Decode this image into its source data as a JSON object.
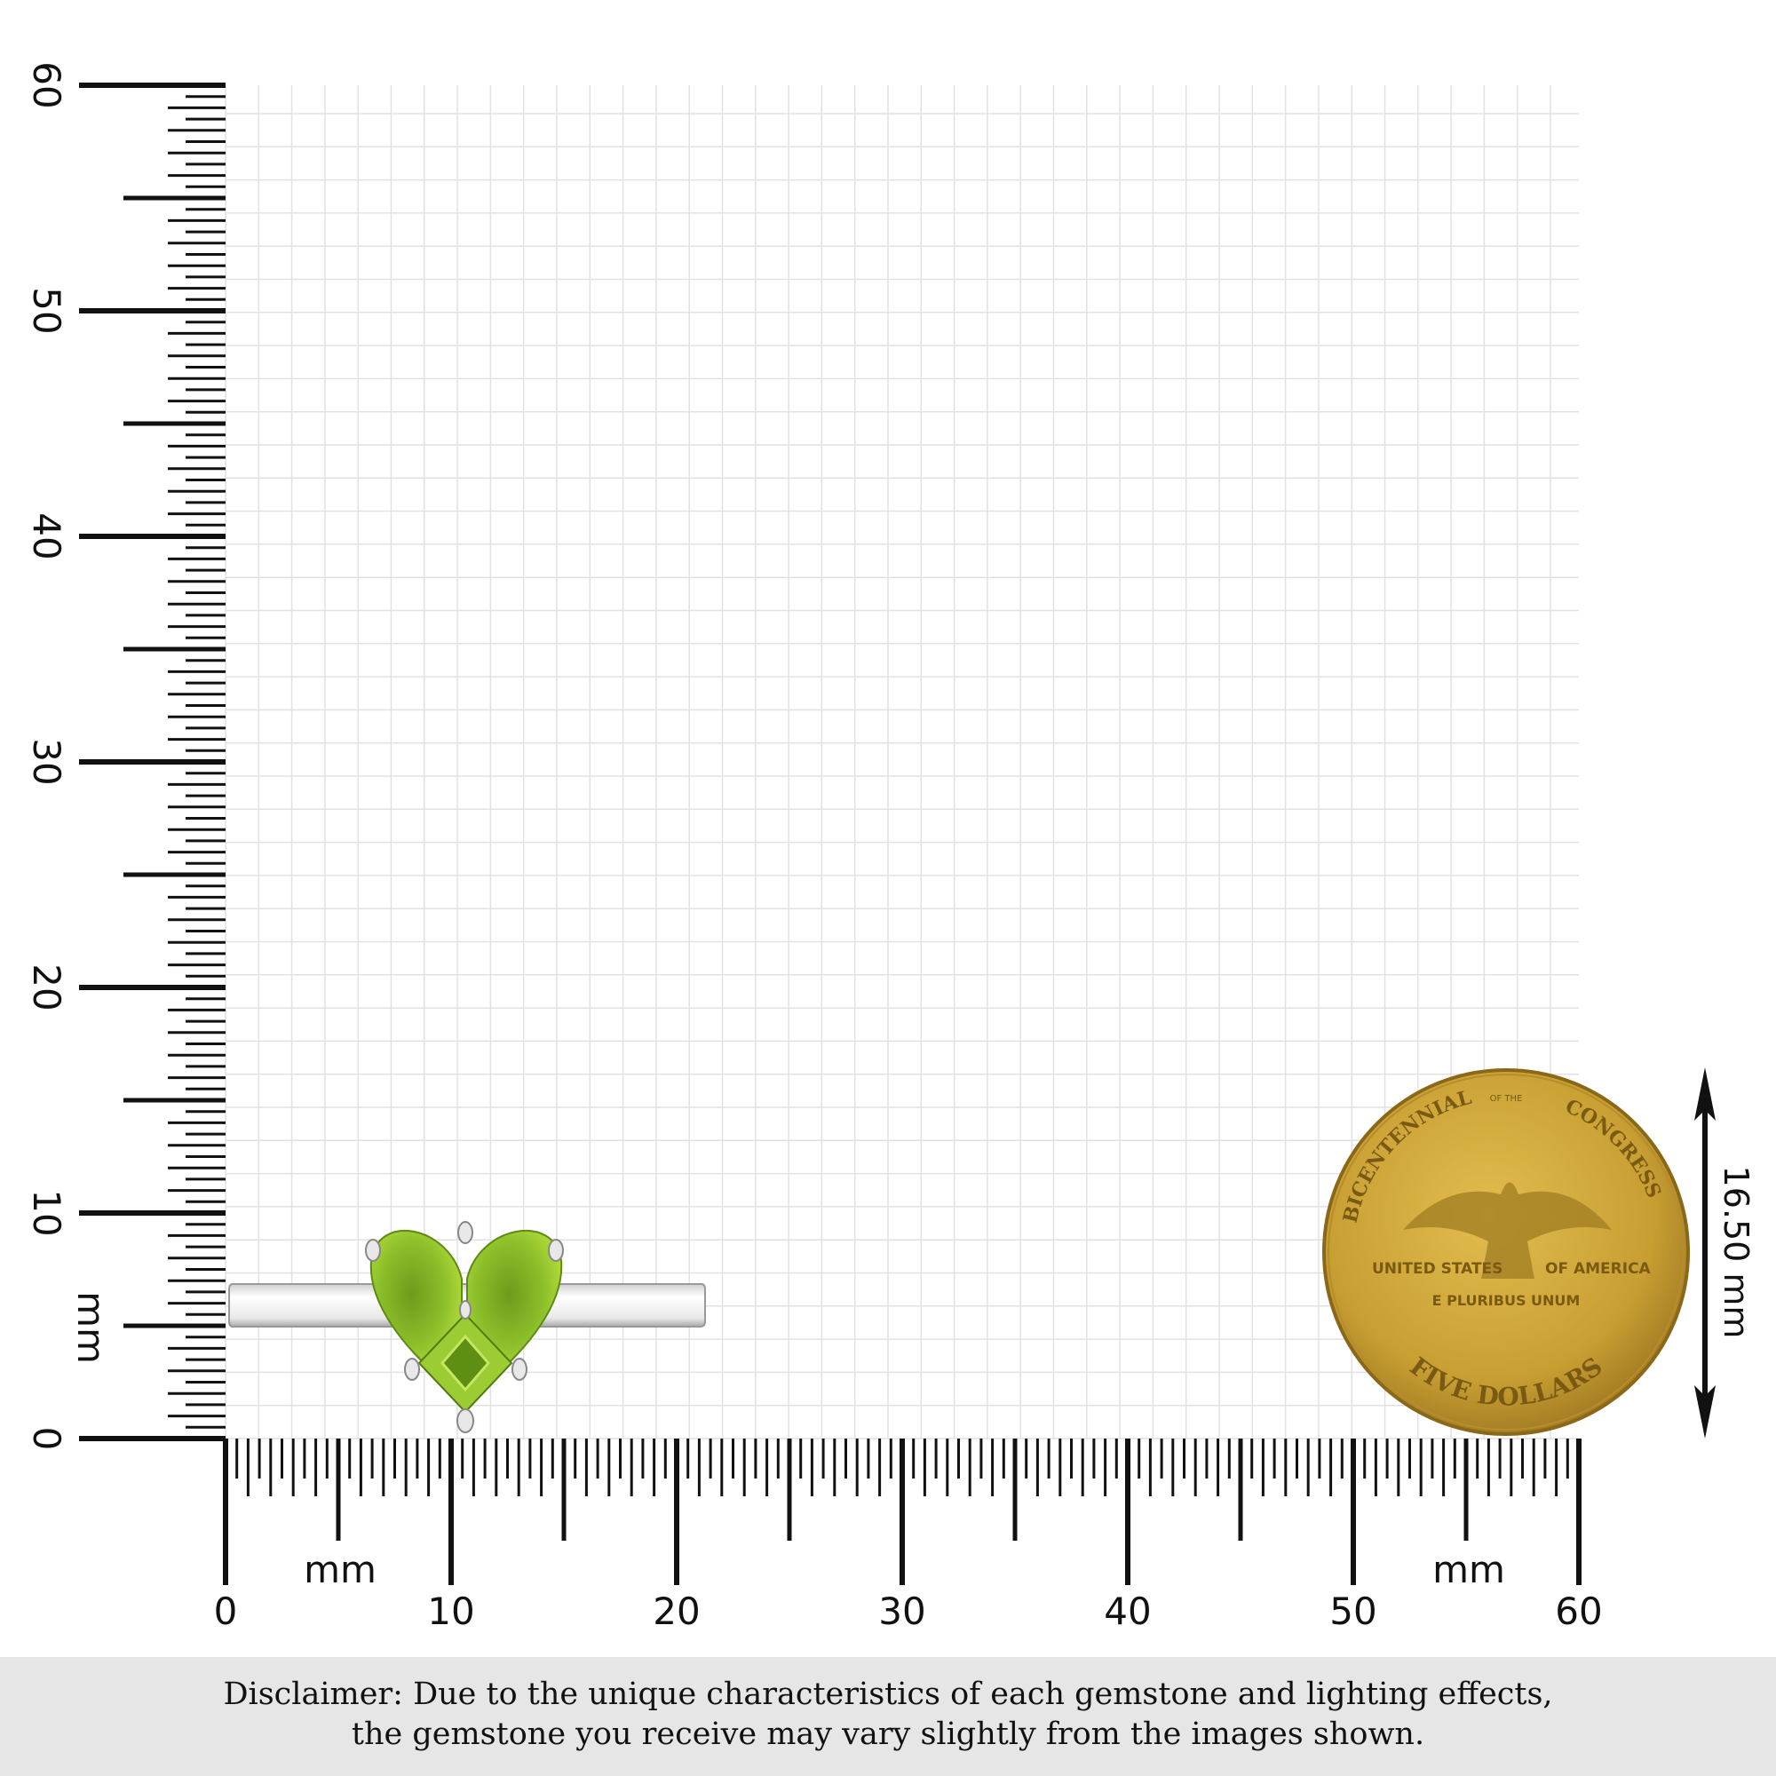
{
  "ruler": {
    "unit": "mm",
    "x_ticks": [
      "0",
      "10",
      "20",
      "30",
      "40",
      "50",
      "60"
    ],
    "y_ticks": [
      "0",
      "10",
      "20",
      "30",
      "40",
      "50",
      "60"
    ],
    "range_mm": [
      0,
      60
    ]
  },
  "coin": {
    "top_text": "BICENTENNIAL",
    "of_the": "OF THE",
    "top_text2": "CONGRESS",
    "left_text": "UNITED STATES",
    "right_text": "OF AMERICA",
    "motto": "E PLURIBUS UNUM",
    "denomination": "FIVE DOLLARS",
    "color": "#c9a43a"
  },
  "measurement": {
    "label": "16.50 mm"
  },
  "gem_color": "#8cbf2a",
  "disclaimer": {
    "line1": "Disclaimer: Due to the unique characteristics of each gemstone and lighting effects,",
    "line2": "the gemstone you receive may vary slightly from the images shown."
  }
}
